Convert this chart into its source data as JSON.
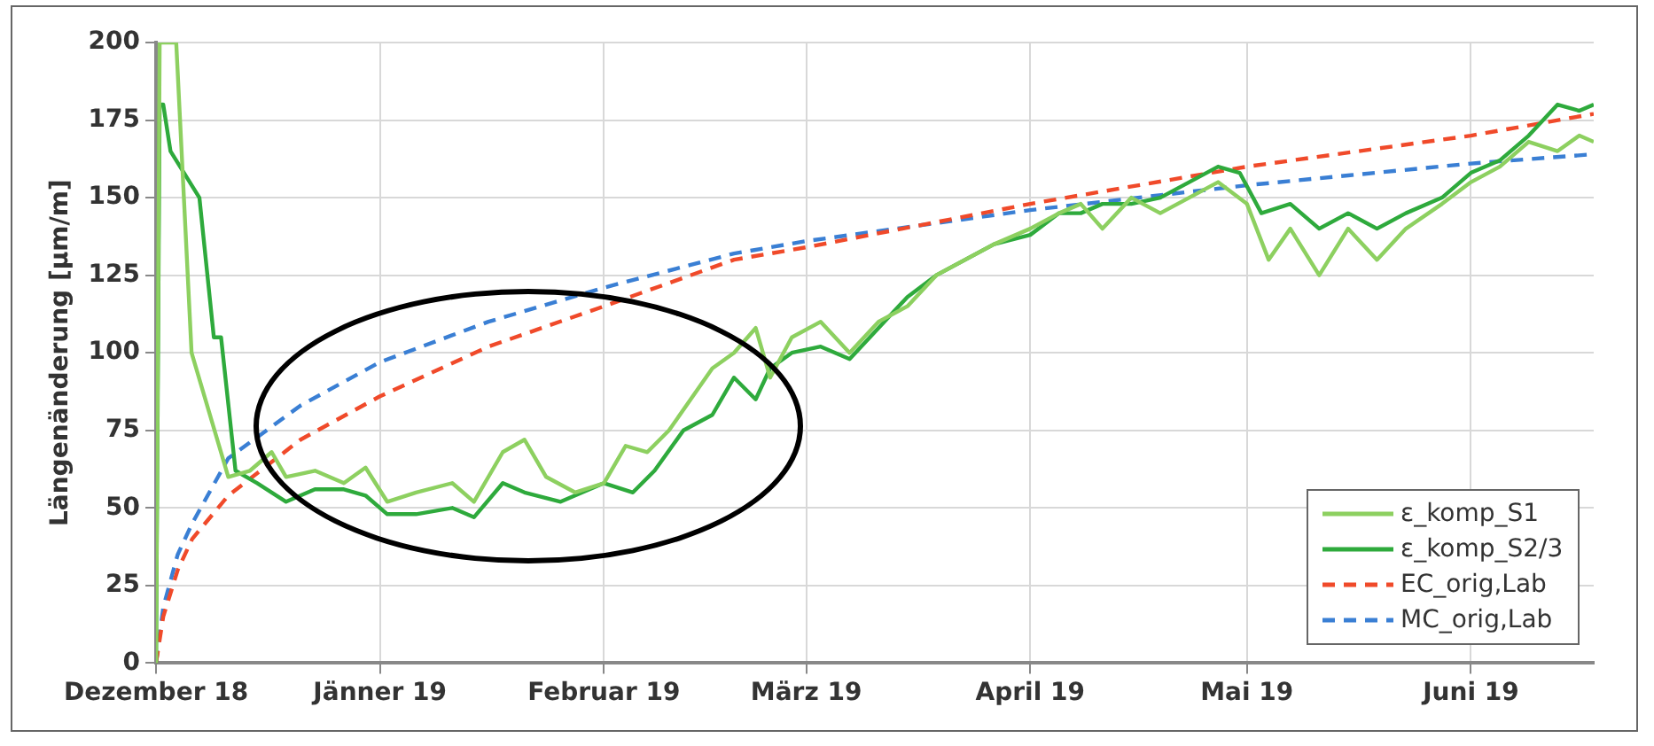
{
  "chart_data": {
    "type": "line",
    "ylabel": "Längenänderung [µm/m]",
    "xlim": [
      "2018-12-01",
      "2019-06-18"
    ],
    "xticks": [
      {
        "value": "2018-12-01",
        "label": "Dezember 18"
      },
      {
        "value": "2019-01-01",
        "label": "Jänner 19"
      },
      {
        "value": "2019-02-01",
        "label": "Februar 19"
      },
      {
        "value": "2019-03-01",
        "label": "März 19"
      },
      {
        "value": "2019-04-01",
        "label": "April 19"
      },
      {
        "value": "2019-05-01",
        "label": "Mai 19"
      },
      {
        "value": "2019-06-01",
        "label": "Juni 19"
      }
    ],
    "ylim": [
      0,
      200
    ],
    "yticks": [
      0,
      25,
      50,
      75,
      100,
      125,
      150,
      175,
      200
    ],
    "grid": true,
    "legend": "bottom right",
    "marker": "none",
    "series": [
      {
        "name": "ε_komp_S1",
        "color": "#8dd060",
        "line_style": "solid",
        "x": [
          "2018-12-01",
          "2018-12-01T12:00",
          "2018-12-03T19:00",
          "2018-12-05T22:00",
          "2018-12-11",
          "2018-12-14",
          "2018-12-17",
          "2018-12-19",
          "2018-12-23",
          "2018-12-27",
          "2018-12-30",
          "2019-01-02",
          "2019-01-06",
          "2019-01-11",
          "2019-01-14",
          "2019-01-18",
          "2019-01-21",
          "2019-01-24",
          "2019-01-28",
          "2019-02-01",
          "2019-02-04",
          "2019-02-07",
          "2019-02-10",
          "2019-02-13",
          "2019-02-16",
          "2019-02-19",
          "2019-02-22",
          "2019-02-24",
          "2019-02-27",
          "2019-03-03",
          "2019-03-07",
          "2019-03-11",
          "2019-03-15",
          "2019-03-19",
          "2019-03-23",
          "2019-03-27",
          "2019-04-01",
          "2019-04-05",
          "2019-04-08",
          "2019-04-11",
          "2019-04-15",
          "2019-04-19",
          "2019-04-23",
          "2019-04-27",
          "2019-05-01",
          "2019-05-04",
          "2019-05-07",
          "2019-05-11",
          "2019-05-15",
          "2019-05-19",
          "2019-05-23",
          "2019-05-28",
          "2019-06-01",
          "2019-06-05",
          "2019-06-09",
          "2019-06-13",
          "2019-06-16",
          "2019-06-18"
        ],
        "values": [
          0,
          200,
          200,
          100,
          60,
          62,
          68,
          60,
          62,
          58,
          63,
          52,
          55,
          58,
          52,
          68,
          72,
          60,
          55,
          58,
          70,
          68,
          75,
          85,
          95,
          100,
          108,
          92,
          105,
          110,
          100,
          110,
          115,
          125,
          130,
          135,
          140,
          145,
          148,
          140,
          150,
          145,
          150,
          155,
          148,
          130,
          140,
          125,
          140,
          130,
          140,
          148,
          155,
          160,
          168,
          165,
          170,
          168
        ]
      },
      {
        "name": "ε_komp_S2/3",
        "color": "#2eaa3c",
        "line_style": "solid",
        "x": [
          "2018-12-01",
          "2018-12-01T12:00",
          "2018-12-02",
          "2018-12-03",
          "2018-12-07",
          "2018-12-09",
          "2018-12-10",
          "2018-12-12",
          "2018-12-15",
          "2018-12-19",
          "2018-12-23",
          "2018-12-27",
          "2018-12-30",
          "2019-01-02",
          "2019-01-06",
          "2019-01-11",
          "2019-01-14",
          "2019-01-18",
          "2019-01-21",
          "2019-01-26",
          "2019-02-01",
          "2019-02-05",
          "2019-02-08",
          "2019-02-12",
          "2019-02-16",
          "2019-02-19",
          "2019-02-22",
          "2019-02-24",
          "2019-02-27",
          "2019-03-03",
          "2019-03-07",
          "2019-03-11",
          "2019-03-15",
          "2019-03-19",
          "2019-03-23",
          "2019-03-27",
          "2019-04-01",
          "2019-04-05",
          "2019-04-08",
          "2019-04-11",
          "2019-04-15",
          "2019-04-19",
          "2019-04-23",
          "2019-04-27",
          "2019-04-30",
          "2019-05-03",
          "2019-05-07",
          "2019-05-11",
          "2019-05-15",
          "2019-05-19",
          "2019-05-23",
          "2019-05-28",
          "2019-06-01",
          "2019-06-05",
          "2019-06-09",
          "2019-06-13",
          "2019-06-16",
          "2019-06-18"
        ],
        "values": [
          0,
          180,
          180,
          165,
          150,
          105,
          105,
          62,
          58,
          52,
          56,
          56,
          54,
          48,
          48,
          50,
          47,
          58,
          55,
          52,
          58,
          55,
          62,
          75,
          80,
          92,
          85,
          95,
          100,
          102,
          98,
          108,
          118,
          125,
          130,
          135,
          138,
          145,
          145,
          148,
          148,
          150,
          155,
          160,
          158,
          145,
          148,
          140,
          145,
          140,
          145,
          150,
          158,
          162,
          170,
          180,
          178,
          180
        ]
      },
      {
        "name": "EC_orig,Lab",
        "color": "#f04a2a",
        "line_style": "dashed",
        "x": [
          "2018-12-01",
          "2018-12-02",
          "2018-12-04",
          "2018-12-06",
          "2018-12-11",
          "2018-12-21",
          "2019-01-01",
          "2019-01-16",
          "2019-02-01",
          "2019-02-19",
          "2019-03-01",
          "2019-04-01",
          "2019-05-01",
          "2019-06-01",
          "2019-06-18"
        ],
        "values": [
          0,
          15,
          30,
          40,
          54,
          72,
          86,
          102,
          115,
          130,
          134,
          148,
          160,
          170,
          177
        ]
      },
      {
        "name": "MC_orig,Lab",
        "color": "#3a7fd4",
        "line_style": "dashed",
        "x": [
          "2018-12-01",
          "2018-12-02",
          "2018-12-04",
          "2018-12-06",
          "2018-12-11",
          "2018-12-21",
          "2019-01-01",
          "2019-01-16",
          "2019-02-01",
          "2019-02-19",
          "2019-03-01",
          "2019-04-01",
          "2019-05-01",
          "2019-06-01",
          "2019-06-18"
        ],
        "values": [
          0,
          18,
          35,
          45,
          66,
          83,
          97,
          110,
          121,
          132,
          136,
          146,
          154,
          161,
          164
        ]
      }
    ]
  }
}
